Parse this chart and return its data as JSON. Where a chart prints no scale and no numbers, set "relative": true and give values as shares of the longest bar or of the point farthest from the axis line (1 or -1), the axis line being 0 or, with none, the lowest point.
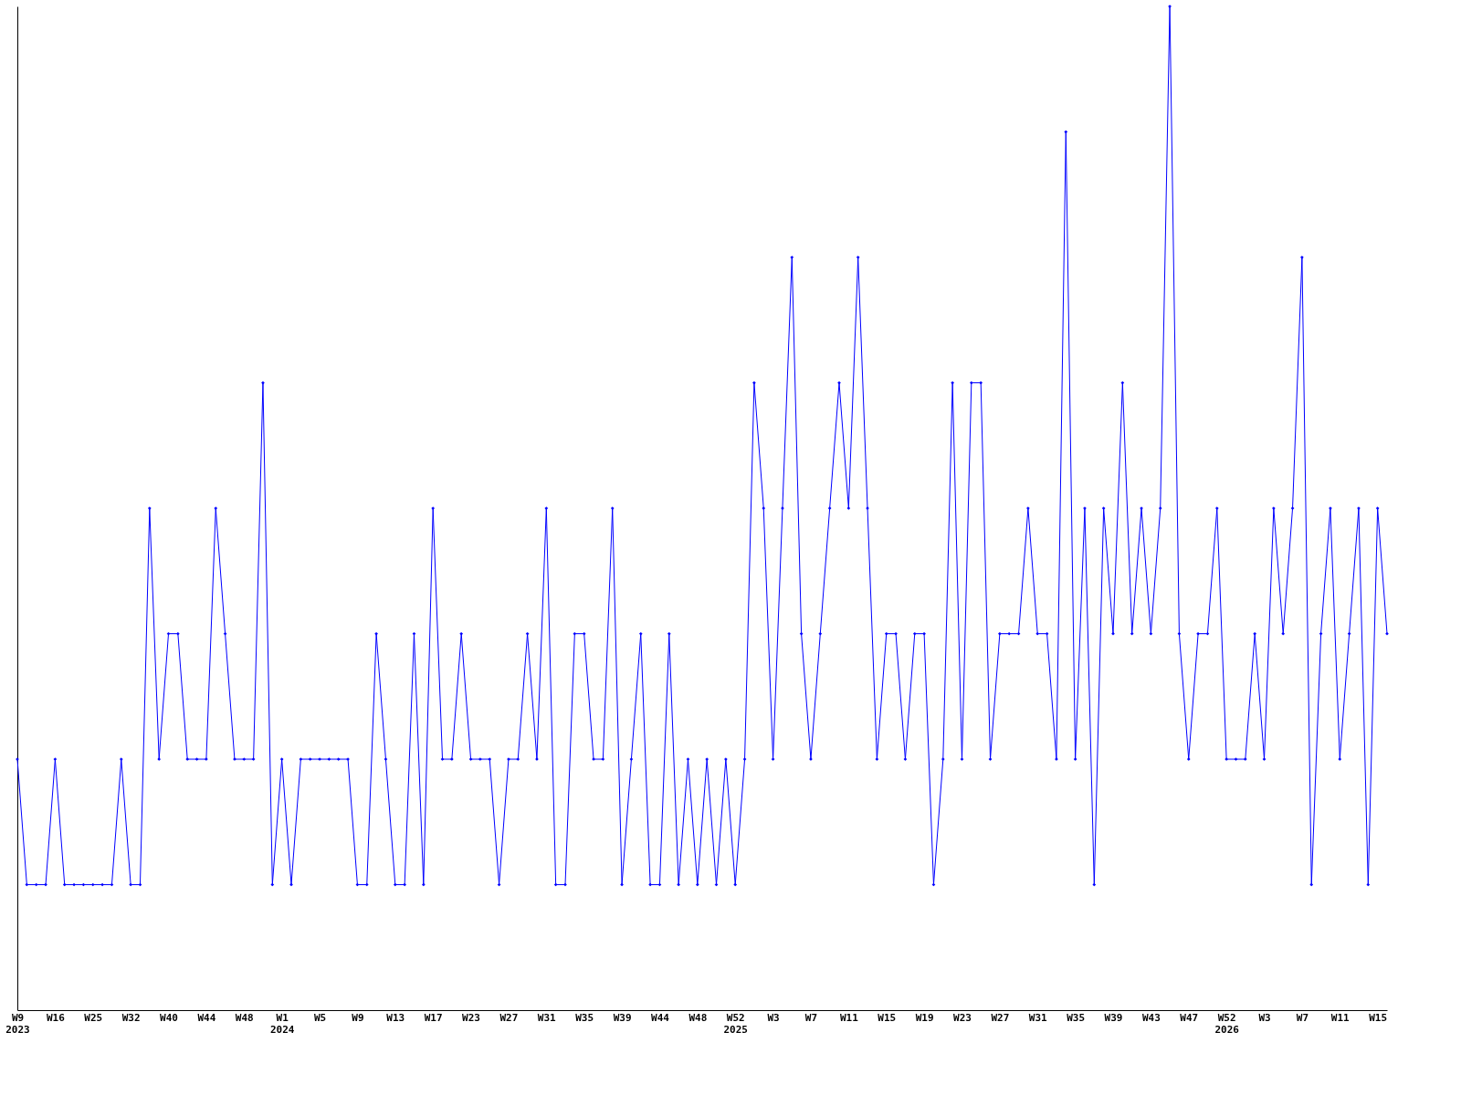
{
  "chart_data": {
    "type": "line",
    "relative": true,
    "grid": false,
    "marker": "diamond",
    "line_style": "solid",
    "categories": [
      "W9\n2023",
      null,
      null,
      null,
      "W16",
      null,
      null,
      null,
      "W25",
      null,
      null,
      null,
      "W32",
      null,
      null,
      null,
      "W40",
      null,
      null,
      null,
      "W44",
      null,
      null,
      null,
      "W48",
      null,
      null,
      null,
      "W1\n2024",
      null,
      null,
      null,
      "W5",
      null,
      null,
      null,
      "W9",
      null,
      null,
      null,
      "W13",
      null,
      null,
      null,
      "W17",
      null,
      null,
      null,
      "W23",
      null,
      null,
      null,
      "W27",
      null,
      null,
      null,
      "W31",
      null,
      null,
      null,
      "W35",
      null,
      null,
      null,
      "W39",
      null,
      null,
      null,
      "W44",
      null,
      null,
      null,
      "W48",
      null,
      null,
      null,
      "W52\n2025",
      null,
      null,
      null,
      "W3",
      null,
      null,
      null,
      "W7",
      null,
      null,
      null,
      "W11",
      null,
      null,
      null,
      "W15",
      null,
      null,
      null,
      "W19",
      null,
      null,
      null,
      "W23",
      null,
      null,
      null,
      "W27",
      null,
      null,
      null,
      "W31",
      null,
      null,
      null,
      "W35",
      null,
      null,
      null,
      "W39",
      null,
      null,
      null,
      "W43",
      null,
      null,
      null,
      "W47",
      null,
      null,
      null,
      "W52\n2026",
      null,
      null,
      null,
      "W3",
      null,
      null,
      null,
      "W7",
      null,
      null,
      null,
      "W11",
      null,
      null,
      null,
      "W15",
      null
    ],
    "series": [
      {
        "color": "#0000ff",
        "values": [
          0.25,
          0.125,
          0.125,
          0.125,
          0.25,
          0.125,
          0.125,
          0.125,
          0.125,
          0.125,
          0.125,
          0.25,
          0.125,
          0.125,
          0.5,
          0.25,
          0.375,
          0.375,
          0.25,
          0.25,
          0.25,
          0.5,
          0.375,
          0.25,
          0.25,
          0.25,
          0.625,
          0.125,
          0.25,
          0.125,
          0.25,
          0.25,
          0.25,
          0.25,
          0.25,
          0.25,
          0.125,
          0.125,
          0.375,
          0.25,
          0.125,
          0.125,
          0.375,
          0.125,
          0.5,
          0.25,
          0.25,
          0.375,
          0.25,
          0.25,
          0.25,
          0.125,
          0.25,
          0.25,
          0.375,
          0.25,
          0.5,
          0.125,
          0.125,
          0.375,
          0.375,
          0.25,
          0.25,
          0.5,
          0.125,
          0.25,
          0.375,
          0.125,
          0.125,
          0.375,
          0.125,
          0.25,
          0.125,
          0.25,
          0.125,
          0.25,
          0.125,
          0.25,
          0.625,
          0.5,
          0.25,
          0.5,
          0.75,
          0.375,
          0.25,
          0.375,
          0.5,
          0.625,
          0.5,
          0.75,
          0.5,
          0.25,
          0.375,
          0.375,
          0.25,
          0.375,
          0.375,
          0.125,
          0.25,
          0.625,
          0.25,
          0.625,
          0.625,
          0.25,
          0.375,
          0.375,
          0.375,
          0.5,
          0.375,
          0.375,
          0.25,
          0.875,
          0.25,
          0.5,
          0.125,
          0.5,
          0.375,
          0.625,
          0.375,
          0.5,
          0.375,
          0.5,
          1,
          0.375,
          0.25,
          0.375,
          0.375,
          0.5,
          0.25,
          0.25,
          0.25,
          0.375,
          0.25,
          0.5,
          0.375,
          0.5,
          0.75,
          0.125,
          0.375,
          0.5,
          0.25,
          0.375,
          0.5,
          0.125,
          0.5,
          0.375
        ]
      }
    ]
  }
}
